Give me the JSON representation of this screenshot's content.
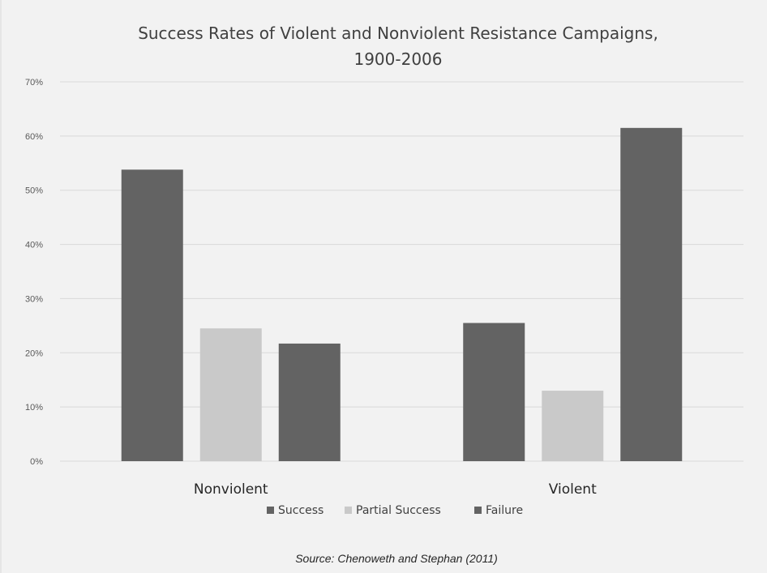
{
  "chart_data": {
    "type": "bar",
    "title": "Success Rates of Violent and Nonviolent Resistance Campaigns,",
    "title_line2": "1900-2006",
    "categories": [
      "Nonviolent",
      "Violent"
    ],
    "series": [
      {
        "name": "Success",
        "values": [
          53.8,
          25.5
        ],
        "color": "#636363"
      },
      {
        "name": "Partial Success",
        "values": [
          24.5,
          13.0
        ],
        "color": "#c9c9c9"
      },
      {
        "name": "Failure",
        "values": [
          21.7,
          61.5
        ],
        "color": "#636363"
      }
    ],
    "ylim": [
      0,
      70
    ],
    "y_ticks": [
      "0%",
      "10%",
      "20%",
      "30%",
      "40%",
      "50%",
      "60%",
      "70%"
    ],
    "y_unit": "%",
    "grid": true,
    "legend_position": "bottom",
    "source": "Source: Chenoweth and Stephan (2011)"
  }
}
